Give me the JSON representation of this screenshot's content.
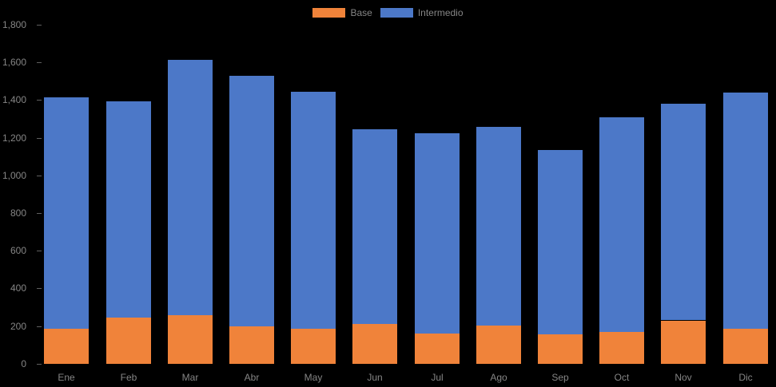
{
  "chart_data": {
    "type": "bar",
    "subtype": "stacked-vertical",
    "title": "",
    "xlabel": "",
    "ylabel": "",
    "categories": [
      "Ene",
      "Feb",
      "Mar",
      "Abr",
      "May",
      "Jun",
      "Jul",
      "Ago",
      "Sep",
      "Oct",
      "Nov",
      "Dic"
    ],
    "series": [
      {
        "name": "Base",
        "color": "#F0833A",
        "values": [
          185,
          245,
          260,
          200,
          185,
          210,
          160,
          205,
          155,
          170,
          230,
          185
        ]
      },
      {
        "name": "Intermedio",
        "color": "#4C78C8",
        "values": [
          1230,
          1150,
          1355,
          1330,
          1260,
          1035,
          1065,
          1055,
          980,
          1140,
          1150,
          1255
        ]
      }
    ],
    "stacked_totals": [
      1415,
      1395,
      1615,
      1530,
      1445,
      1245,
      1225,
      1260,
      1135,
      1310,
      1380,
      1440
    ],
    "ylim": [
      0,
      1800
    ],
    "ytick_step": 200,
    "y_tick_labels": [
      "0",
      "200",
      "400",
      "600",
      "800",
      "1,000",
      "1,200",
      "1,400",
      "1,600",
      "1,800"
    ],
    "legend_position": "top-center",
    "grid": false
  },
  "colors": {
    "background": "#000000",
    "axis_text": "#858585",
    "tick_mark": "#5f5f5f"
  }
}
